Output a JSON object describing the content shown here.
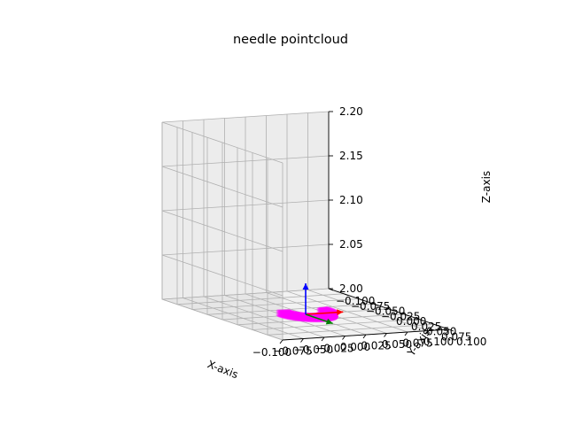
{
  "chart_data": {
    "type": "scatter",
    "title": "needle pointcloud",
    "xlabel": "X-axis",
    "ylabel": "Y-axis",
    "zlabel": "Z-axis",
    "xlim": [
      -0.1,
      0.1
    ],
    "ylim": [
      -0.1,
      0.1
    ],
    "zlim": [
      2.0,
      2.2
    ],
    "x_ticks": [
      "−0.100",
      "−0.075",
      "−0.050",
      "−0.025",
      "0.000",
      "0.025",
      "0.050",
      "0.075",
      "0.100"
    ],
    "y_ticks": [
      "−0.100",
      "−0.075",
      "−0.050",
      "−0.025",
      "0.000",
      "0.025",
      "0.050",
      "0.075",
      "0.100"
    ],
    "z_ticks": [
      "2.00",
      "2.05",
      "2.10",
      "2.15",
      "2.20"
    ],
    "grid": true,
    "point_color": "#ff00ff",
    "needle_arc": {
      "center": [
        0.0,
        0.0,
        2.0
      ],
      "radius_mm_range": [
        0.018,
        0.03
      ],
      "angle_deg_range": [
        -10,
        190
      ],
      "z_range": [
        2.0,
        2.004
      ]
    },
    "frame_axes": [
      {
        "axis": "x",
        "color": "#ff0000",
        "vector": [
          0.045,
          0.0,
          0.0
        ]
      },
      {
        "axis": "y",
        "color": "#008000",
        "vector": [
          0.0,
          0.045,
          0.0
        ]
      },
      {
        "axis": "z",
        "color": "#0000ff",
        "vector": [
          0.0,
          0.0,
          0.035
        ]
      }
    ]
  }
}
